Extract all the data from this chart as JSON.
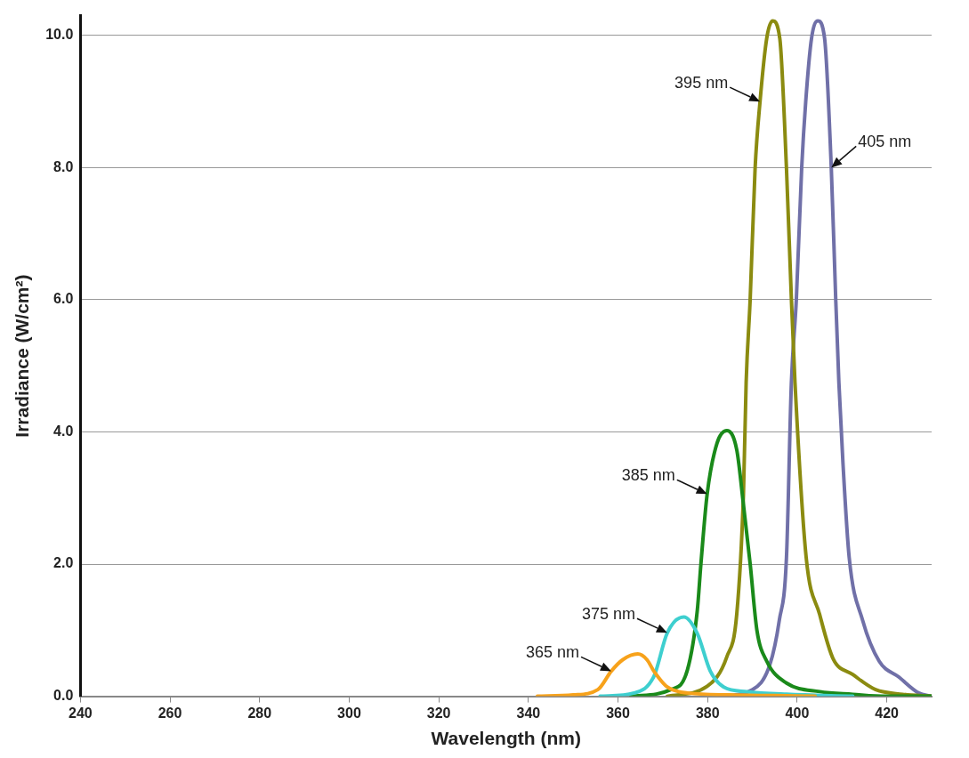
{
  "chart_data": {
    "type": "line",
    "xlabel": "Wavelength (nm)",
    "ylabel": "Irradiance (W/cm²)",
    "xlim": [
      240,
      430
    ],
    "xticks": [
      240,
      260,
      280,
      300,
      320,
      340,
      360,
      380,
      400,
      420
    ],
    "ylim": [
      0,
      10.3
    ],
    "yticks": [
      {
        "value": 0,
        "label": "0.0"
      },
      {
        "value": 2,
        "label": "2.0"
      },
      {
        "value": 4,
        "label": "4.0"
      },
      {
        "value": 6,
        "label": "6.0"
      },
      {
        "value": 8,
        "label": "8.0"
      },
      {
        "value": 10,
        "label": "10.0"
      }
    ],
    "grid": "y",
    "legend": false,
    "marker": "none",
    "line_style": "solid",
    "series": [
      {
        "color": "#f7a21b",
        "x": [
          342,
          350,
          355.5,
          358.5,
          361,
          364.4,
          366.5,
          368,
          371,
          375.5,
          385,
          395,
          404
        ],
        "values": [
          0,
          0.02,
          0.1,
          0.38,
          0.55,
          0.64,
          0.55,
          0.38,
          0.14,
          0.05,
          0.02,
          0.01,
          0
        ]
      },
      {
        "color": "#3ecfcf",
        "x": [
          356,
          363.6,
          368,
          371,
          374.7,
          377.7,
          380.6,
          383.6,
          388.7,
          397.6,
          412.4
        ],
        "values": [
          0,
          0.05,
          0.3,
          0.96,
          1.2,
          0.95,
          0.38,
          0.14,
          0.07,
          0.03,
          0
        ]
      },
      {
        "color": "#1a8a1a",
        "x": [
          362.9,
          371.8,
          375.5,
          377.7,
          378.5,
          379.9,
          382.1,
          384.3,
          386.5,
          388,
          389.5,
          391,
          393.2,
          397.6,
          405,
          412.4,
          419.8,
          430
        ],
        "values": [
          0,
          0.1,
          0.4,
          1.3,
          2.0,
          3.06,
          3.83,
          4.02,
          3.73,
          2.9,
          2.0,
          1.0,
          0.53,
          0.2,
          0.07,
          0.03,
          0,
          0
        ]
      },
      {
        "color": "#8b8b10",
        "x": [
          371,
          379.9,
          384.3,
          386.5,
          388,
          388.6,
          389.5,
          390.6,
          391.7,
          393.2,
          394.5,
          396.1,
          397.6,
          398.7,
          399.5,
          402,
          405,
          408,
          412.4,
          417.5,
          423.5,
          430
        ],
        "values": [
          0,
          0.15,
          0.6,
          1.24,
          3.06,
          4.75,
          6.01,
          7.99,
          9.0,
          9.96,
          10.22,
          9.96,
          7.99,
          6.01,
          4.75,
          2.1,
          1.24,
          0.57,
          0.33,
          0.1,
          0.03,
          0
        ]
      },
      {
        "color": "#7070a8",
        "x": [
          382.8,
          390,
          393.9,
          396,
          397.6,
          398.7,
          399.8,
          401,
          401.9,
          403.2,
          404.6,
          406.1,
          407.6,
          408.6,
          409.3,
          410.2,
          411.6,
          414.6,
          418.3,
          422.7,
          427.1,
          430
        ],
        "values": [
          0,
          0.1,
          0.48,
          1.15,
          2.1,
          4.75,
          6.0,
          8.0,
          9.0,
          9.96,
          10.22,
          9.96,
          8.0,
          6.0,
          4.75,
          3.54,
          2.1,
          1.15,
          0.53,
          0.29,
          0.05,
          0
        ]
      }
    ],
    "annotations": [
      {
        "text": "365 nm",
        "x": 358.5,
        "y": 0.38
      },
      {
        "text": "375 nm",
        "x": 371,
        "y": 0.96
      },
      {
        "text": "385 nm",
        "x": 379.9,
        "y": 3.06
      },
      {
        "text": "395 nm",
        "x": 391.7,
        "y": 9.0
      },
      {
        "text": "405 nm",
        "x": 407.6,
        "y": 8.0
      }
    ]
  }
}
